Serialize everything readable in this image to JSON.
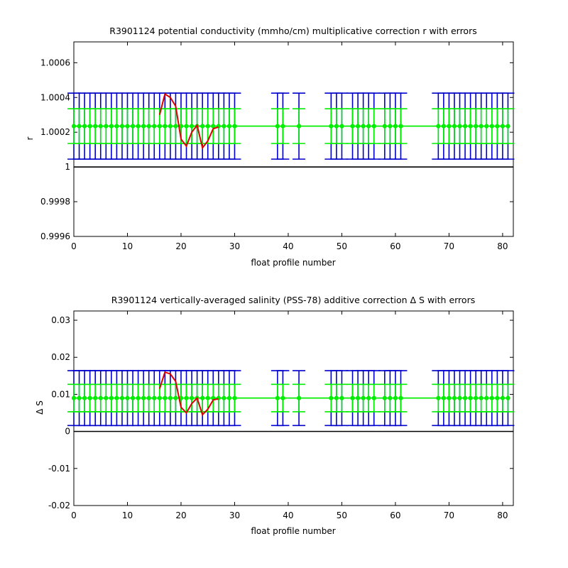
{
  "chart_data": [
    {
      "type": "line",
      "title": "R3901124 potential conductivity (mmho/cm) multiplicative correction r with errors",
      "xlabel": "float profile number",
      "ylabel": "r",
      "xlim": [
        0,
        82
      ],
      "ylim": [
        0.9996,
        1.00072
      ],
      "xticks": [
        0,
        10,
        20,
        30,
        40,
        50,
        60,
        70,
        80
      ],
      "xtick_labels": [
        "0",
        "10",
        "20",
        "30",
        "40",
        "50",
        "60",
        "70",
        "80"
      ],
      "yticks": [
        0.9996,
        0.9998,
        1.0,
        1.0002,
        1.0004,
        1.0006
      ],
      "ytick_labels": [
        "0.9996",
        "0.9998",
        "1",
        "1.0002",
        "1.0004",
        "1.0006"
      ],
      "reference_line": 1.0,
      "grid": false,
      "colors": {
        "fit": "#00ee00",
        "error_outer": "#0000cc",
        "error_inner": "#00ee00",
        "profile_correction": "#dd0000",
        "reference": "#000000"
      },
      "profiles": [
        0,
        1,
        2,
        3,
        4,
        5,
        6,
        7,
        8,
        9,
        10,
        11,
        12,
        13,
        14,
        15,
        16,
        17,
        18,
        19,
        20,
        21,
        22,
        23,
        24,
        25,
        26,
        27,
        28,
        29,
        30,
        38,
        39,
        42,
        48,
        49,
        50,
        52,
        53,
        54,
        55,
        56,
        58,
        59,
        60,
        61,
        68,
        69,
        70,
        71,
        72,
        73,
        74,
        75,
        76,
        77,
        78,
        79,
        80,
        81
      ],
      "fit_value": 1.000235,
      "error_outer": 0.00019,
      "error_inner": 0.0001,
      "series": [
        {
          "x": [
            0,
            81
          ],
          "y": [
            1.000235,
            1.000235
          ]
        },
        {
          "x": [
            16,
            17,
            18,
            19,
            20,
            21,
            22,
            23,
            24,
            25,
            26,
            27
          ],
          "y": [
            1.0003,
            1.00042,
            1.0004,
            1.00035,
            1.00016,
            1.00012,
            1.0002,
            1.00024,
            1.00011,
            1.00015,
            1.00022,
            1.00023
          ]
        }
      ]
    },
    {
      "type": "line",
      "title": "R3901124 vertically-averaged salinity (PSS-78) additive correction Δ S with errors",
      "xlabel": "float profile number",
      "ylabel": "Δ S",
      "xlim": [
        0,
        82
      ],
      "ylim": [
        -0.02,
        0.0325
      ],
      "xticks": [
        0,
        10,
        20,
        30,
        40,
        50,
        60,
        70,
        80
      ],
      "xtick_labels": [
        "0",
        "10",
        "20",
        "30",
        "40",
        "50",
        "60",
        "70",
        "80"
      ],
      "yticks": [
        -0.02,
        -0.01,
        0,
        0.01,
        0.02,
        0.03
      ],
      "ytick_labels": [
        "-0.02",
        "-0.01",
        "0",
        "0.01",
        "0.02",
        "0.03"
      ],
      "reference_line": 0,
      "grid": false,
      "colors": {
        "fit": "#00ee00",
        "error_outer": "#0000cc",
        "error_inner": "#00ee00",
        "profile_correction": "#dd0000",
        "reference": "#000000"
      },
      "profiles": [
        0,
        1,
        2,
        3,
        4,
        5,
        6,
        7,
        8,
        9,
        10,
        11,
        12,
        13,
        14,
        15,
        16,
        17,
        18,
        19,
        20,
        21,
        22,
        23,
        24,
        25,
        26,
        27,
        28,
        29,
        30,
        38,
        39,
        42,
        48,
        49,
        50,
        52,
        53,
        54,
        55,
        56,
        58,
        59,
        60,
        61,
        68,
        69,
        70,
        71,
        72,
        73,
        74,
        75,
        76,
        77,
        78,
        79,
        80,
        81
      ],
      "fit_value": 0.009,
      "error_outer": 0.0074,
      "error_inner": 0.0037,
      "series": [
        {
          "x": [
            0,
            81
          ],
          "y": [
            0.009,
            0.009
          ]
        },
        {
          "x": [
            16,
            17,
            18,
            19,
            20,
            21,
            22,
            23,
            24,
            25,
            26,
            27
          ],
          "y": [
            0.0115,
            0.016,
            0.0155,
            0.0135,
            0.0065,
            0.005,
            0.0075,
            0.009,
            0.0045,
            0.006,
            0.0085,
            0.0088
          ]
        }
      ]
    }
  ]
}
